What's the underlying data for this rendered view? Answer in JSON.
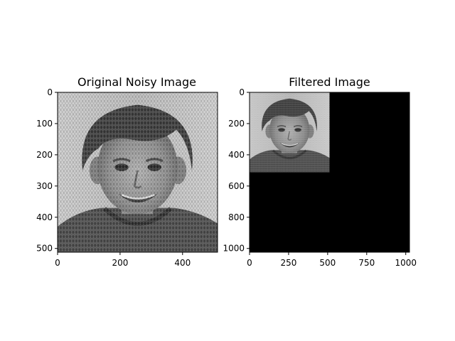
{
  "figure": {
    "background": "#ffffff"
  },
  "chart_data": [
    {
      "type": "image",
      "title": "Original Noisy Image",
      "image_extent": {
        "x": [
          0,
          512
        ],
        "y": [
          0,
          512
        ]
      },
      "xlim": [
        0,
        512
      ],
      "ylim": [
        512,
        0
      ],
      "xticks": [
        0,
        200,
        400
      ],
      "yticks": [
        0,
        100,
        200,
        300,
        400,
        500
      ],
      "content": "grayscale portrait of a smiling boy with periodic diagonal noise pattern"
    },
    {
      "type": "image",
      "title": "Filtered Image",
      "image_extent": {
        "x": [
          0,
          512
        ],
        "y": [
          0,
          512
        ]
      },
      "xlim": [
        0,
        1024
      ],
      "ylim": [
        1024,
        0
      ],
      "xticks": [
        0,
        250,
        500,
        750,
        1000
      ],
      "yticks": [
        0,
        200,
        400,
        600,
        800,
        1000
      ],
      "content": "downscaled grayscale portrait in top-left quadrant, remainder black"
    }
  ]
}
